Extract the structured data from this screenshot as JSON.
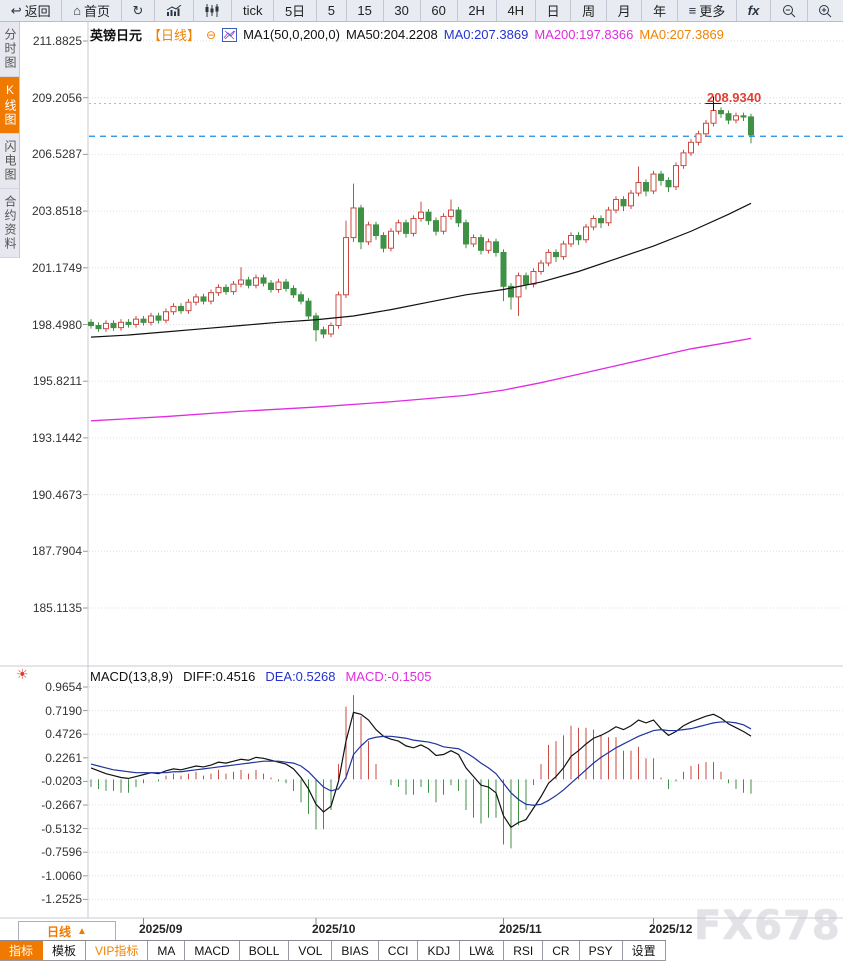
{
  "toolbar": {
    "back": "返回",
    "home": "首页",
    "tick": "tick",
    "d5": "5日",
    "m5": "5",
    "m15": "15",
    "m30": "30",
    "m60": "60",
    "h2": "2H",
    "h4": "4H",
    "day": "日",
    "week": "周",
    "month": "月",
    "year": "年",
    "more": "更多",
    "fx": "fx"
  },
  "sidebar": {
    "items": [
      {
        "label": "分时图",
        "active": false
      },
      {
        "label": "K线图",
        "active": true
      },
      {
        "label": "闪电图",
        "active": false
      },
      {
        "label": "合约资料",
        "active": false
      }
    ]
  },
  "chart_header": {
    "symbol": "英镑日元",
    "period": "【日线】",
    "ma_group": "MA1(50,0,200,0)",
    "ma50": "MA50:204.2208",
    "ma0_blue": "MA0:207.3869",
    "ma200": "MA200:197.8366",
    "ma0_orange": "MA0:207.3869"
  },
  "macd_header": {
    "title": "MACD(13,8,9)",
    "diff": "DIFF:0.4516",
    "dea": "DEA:0.5268",
    "macd": "MACD:-0.1505"
  },
  "price_marker": "208.9340",
  "period_selector": {
    "label": "日线",
    "arrow": "▲"
  },
  "bottom_tabs": {
    "items": [
      {
        "label": "指标"
      },
      {
        "label": "模板"
      },
      {
        "label": "VIP指标"
      },
      {
        "label": "MA"
      },
      {
        "label": "MACD"
      },
      {
        "label": "BOLL"
      },
      {
        "label": "VOL"
      },
      {
        "label": "BIAS"
      },
      {
        "label": "CCI"
      },
      {
        "label": "KDJ"
      },
      {
        "label": "LW&"
      },
      {
        "label": "RSI"
      },
      {
        "label": "CR"
      },
      {
        "label": "PSY"
      },
      {
        "label": "设置"
      }
    ]
  },
  "watermark": "FX678",
  "chart_data": {
    "type": "candlestick_with_macd",
    "symbol": "英镑日元",
    "period": "日线",
    "y_labels": [
      "211.8825",
      "209.2056",
      "206.5287",
      "203.8518",
      "201.1749",
      "198.4980",
      "195.8211",
      "193.1442",
      "190.4673",
      "187.7904",
      "185.1135"
    ],
    "macd_y_labels": [
      "0.9654",
      "0.7190",
      "0.4726",
      "0.2261",
      "-0.0203",
      "-0.2667",
      "-0.5132",
      "-0.7596",
      "-1.0060",
      "-1.2525"
    ],
    "months": [
      {
        "label": "2025/09",
        "index": 7
      },
      {
        "label": "2025/10",
        "index": 30
      },
      {
        "label": "2025/11",
        "index": 55
      },
      {
        "label": "2025/12",
        "index": 75
      }
    ],
    "high_marker": 208.934,
    "last_price": 207.3869,
    "cross_index": 83,
    "ma_values": {
      "ma50": 204.2208,
      "ma200": 197.8366,
      "ma0": 207.3869
    },
    "colors": {
      "up": "#cc4a41",
      "down": "#3f9146",
      "ma50": "#111111",
      "ma200": "#e02ce0",
      "dea": "#20339e",
      "last_line": "#1f8be4",
      "high_line": "#f0a19c"
    },
    "ohlc": [
      [
        198.6,
        198.75,
        198.3,
        198.45
      ],
      [
        198.45,
        198.6,
        198.15,
        198.3
      ],
      [
        198.3,
        198.7,
        198.15,
        198.55
      ],
      [
        198.55,
        198.7,
        198.2,
        198.35
      ],
      [
        198.35,
        198.75,
        198.2,
        198.6
      ],
      [
        198.6,
        198.75,
        198.35,
        198.5
      ],
      [
        198.5,
        198.9,
        198.35,
        198.75
      ],
      [
        198.75,
        198.9,
        198.45,
        198.6
      ],
      [
        198.6,
        199.05,
        198.45,
        198.9
      ],
      [
        198.9,
        199.05,
        198.55,
        198.7
      ],
      [
        198.7,
        199.25,
        198.55,
        199.1
      ],
      [
        199.1,
        199.5,
        198.95,
        199.35
      ],
      [
        199.35,
        199.5,
        199.0,
        199.15
      ],
      [
        199.15,
        199.7,
        199.0,
        199.55
      ],
      [
        199.55,
        199.95,
        199.4,
        199.8
      ],
      [
        199.8,
        199.95,
        199.45,
        199.6
      ],
      [
        199.6,
        200.15,
        199.45,
        200.0
      ],
      [
        200.0,
        200.4,
        199.85,
        200.25
      ],
      [
        200.25,
        200.4,
        199.9,
        200.05
      ],
      [
        200.05,
        200.55,
        199.9,
        200.4
      ],
      [
        200.4,
        201.2,
        200.25,
        200.6
      ],
      [
        200.6,
        200.75,
        200.2,
        200.35
      ],
      [
        200.35,
        200.85,
        200.2,
        200.7
      ],
      [
        200.7,
        200.85,
        200.3,
        200.45
      ],
      [
        200.45,
        200.6,
        200.0,
        200.15
      ],
      [
        200.15,
        200.65,
        200.0,
        200.5
      ],
      [
        200.5,
        200.65,
        200.05,
        200.2
      ],
      [
        200.2,
        200.35,
        199.75,
        199.9
      ],
      [
        199.9,
        200.05,
        199.45,
        199.6
      ],
      [
        199.6,
        199.75,
        198.75,
        198.9
      ],
      [
        198.9,
        199.05,
        197.7,
        198.25
      ],
      [
        198.25,
        198.4,
        197.85,
        198.05
      ],
      [
        198.05,
        198.6,
        197.9,
        198.45
      ],
      [
        198.45,
        200.05,
        198.3,
        199.9
      ],
      [
        199.9,
        203.4,
        199.75,
        202.6
      ],
      [
        202.6,
        205.15,
        202.4,
        204.0
      ],
      [
        204.0,
        204.15,
        202.05,
        202.4
      ],
      [
        202.4,
        203.35,
        202.25,
        203.2
      ],
      [
        203.2,
        203.35,
        202.5,
        202.7
      ],
      [
        202.7,
        202.85,
        201.9,
        202.1
      ],
      [
        202.1,
        203.05,
        201.95,
        202.9
      ],
      [
        202.9,
        203.45,
        202.75,
        203.3
      ],
      [
        203.3,
        203.45,
        202.6,
        202.8
      ],
      [
        202.8,
        203.65,
        202.65,
        203.5
      ],
      [
        203.5,
        204.3,
        203.35,
        203.8
      ],
      [
        203.8,
        203.95,
        203.2,
        203.4
      ],
      [
        203.4,
        203.55,
        202.7,
        202.9
      ],
      [
        202.9,
        203.75,
        202.75,
        203.6
      ],
      [
        203.6,
        204.4,
        203.45,
        203.9
      ],
      [
        203.9,
        204.05,
        203.1,
        203.3
      ],
      [
        203.3,
        203.45,
        202.1,
        202.3
      ],
      [
        202.3,
        202.75,
        202.15,
        202.6
      ],
      [
        202.6,
        202.75,
        201.8,
        202.0
      ],
      [
        202.0,
        202.55,
        201.85,
        202.4
      ],
      [
        202.4,
        202.55,
        201.7,
        201.9
      ],
      [
        201.9,
        202.05,
        199.6,
        200.3
      ],
      [
        200.3,
        200.45,
        199.2,
        199.8
      ],
      [
        199.8,
        200.95,
        198.9,
        200.8
      ],
      [
        200.8,
        200.95,
        200.15,
        200.4
      ],
      [
        200.4,
        201.15,
        200.25,
        201.0
      ],
      [
        201.0,
        201.55,
        200.85,
        201.4
      ],
      [
        201.4,
        202.05,
        201.25,
        201.9
      ],
      [
        201.9,
        202.05,
        201.45,
        201.7
      ],
      [
        201.7,
        202.45,
        201.55,
        202.3
      ],
      [
        202.3,
        202.85,
        202.15,
        202.7
      ],
      [
        202.7,
        202.85,
        202.25,
        202.5
      ],
      [
        202.5,
        203.25,
        202.35,
        203.1
      ],
      [
        203.1,
        203.65,
        202.95,
        203.5
      ],
      [
        203.5,
        203.65,
        203.05,
        203.3
      ],
      [
        203.3,
        204.05,
        203.15,
        203.9
      ],
      [
        203.9,
        204.55,
        203.75,
        204.4
      ],
      [
        204.4,
        204.55,
        203.85,
        204.1
      ],
      [
        204.1,
        204.85,
        203.95,
        204.7
      ],
      [
        204.7,
        205.95,
        204.55,
        205.2
      ],
      [
        205.2,
        205.35,
        204.55,
        204.8
      ],
      [
        204.8,
        205.75,
        204.65,
        205.6
      ],
      [
        205.6,
        205.75,
        205.05,
        205.3
      ],
      [
        205.3,
        205.45,
        204.75,
        205.0
      ],
      [
        205.0,
        206.15,
        204.85,
        206.0
      ],
      [
        206.0,
        206.75,
        205.85,
        206.6
      ],
      [
        206.6,
        207.25,
        206.45,
        207.1
      ],
      [
        207.1,
        207.65,
        206.95,
        207.5
      ],
      [
        207.5,
        208.15,
        207.35,
        208.0
      ],
      [
        208.0,
        208.93,
        207.85,
        208.6
      ],
      [
        208.6,
        208.75,
        208.25,
        208.45
      ],
      [
        208.45,
        208.6,
        207.95,
        208.15
      ],
      [
        208.15,
        208.5,
        208.0,
        208.35
      ],
      [
        208.35,
        208.5,
        208.1,
        208.3
      ],
      [
        208.3,
        208.45,
        207.05,
        207.45
      ]
    ],
    "ma50_points": [
      [
        0,
        197.9
      ],
      [
        5,
        198.0
      ],
      [
        10,
        198.15
      ],
      [
        15,
        198.3
      ],
      [
        20,
        198.45
      ],
      [
        25,
        198.6
      ],
      [
        30,
        198.72
      ],
      [
        35,
        198.9
      ],
      [
        40,
        199.2
      ],
      [
        45,
        199.55
      ],
      [
        50,
        199.9
      ],
      [
        55,
        200.15
      ],
      [
        60,
        200.5
      ],
      [
        65,
        201.0
      ],
      [
        70,
        201.6
      ],
      [
        75,
        202.2
      ],
      [
        80,
        202.9
      ],
      [
        85,
        203.7
      ],
      [
        88,
        204.22
      ]
    ],
    "ma200_points": [
      [
        0,
        193.95
      ],
      [
        10,
        194.15
      ],
      [
        20,
        194.4
      ],
      [
        30,
        194.6
      ],
      [
        40,
        194.85
      ],
      [
        50,
        195.15
      ],
      [
        55,
        195.4
      ],
      [
        60,
        195.75
      ],
      [
        65,
        196.15
      ],
      [
        70,
        196.55
      ],
      [
        75,
        196.95
      ],
      [
        80,
        197.35
      ],
      [
        85,
        197.65
      ],
      [
        88,
        197.84
      ]
    ],
    "macd": {
      "params": "(13,8,9)",
      "last": {
        "diff": 0.4516,
        "dea": 0.5268,
        "macd": -0.1505
      },
      "hist_formula": "2*(diff-dea)",
      "diff": [
        0.12,
        0.09,
        0.06,
        0.04,
        0.02,
        0.01,
        0.03,
        0.05,
        0.07,
        0.06,
        0.09,
        0.11,
        0.1,
        0.12,
        0.14,
        0.13,
        0.15,
        0.18,
        0.17,
        0.19,
        0.21,
        0.2,
        0.23,
        0.22,
        0.2,
        0.18,
        0.16,
        0.11,
        0.02,
        -0.1,
        -0.26,
        -0.34,
        -0.28,
        -0.02,
        0.4,
        0.7,
        0.68,
        0.62,
        0.52,
        0.45,
        0.42,
        0.4,
        0.35,
        0.33,
        0.36,
        0.32,
        0.25,
        0.26,
        0.3,
        0.26,
        0.12,
        0.03,
        -0.06,
        -0.08,
        -0.14,
        -0.38,
        -0.5,
        -0.45,
        -0.42,
        -0.3,
        -0.18,
        -0.04,
        0.03,
        0.12,
        0.24,
        0.3,
        0.37,
        0.43,
        0.46,
        0.5,
        0.55,
        0.52,
        0.56,
        0.62,
        0.59,
        0.62,
        0.53,
        0.46,
        0.5,
        0.56,
        0.6,
        0.63,
        0.66,
        0.68,
        0.64,
        0.58,
        0.54,
        0.5,
        0.4516
      ],
      "dea": [
        0.16,
        0.14,
        0.12,
        0.1,
        0.09,
        0.08,
        0.07,
        0.07,
        0.07,
        0.07,
        0.07,
        0.08,
        0.08,
        0.09,
        0.1,
        0.11,
        0.12,
        0.13,
        0.14,
        0.15,
        0.16,
        0.17,
        0.18,
        0.19,
        0.19,
        0.19,
        0.18,
        0.17,
        0.14,
        0.08,
        0.0,
        -0.08,
        -0.12,
        -0.1,
        0.02,
        0.26,
        0.35,
        0.42,
        0.44,
        0.45,
        0.45,
        0.44,
        0.43,
        0.41,
        0.4,
        0.39,
        0.37,
        0.34,
        0.33,
        0.32,
        0.28,
        0.23,
        0.17,
        0.12,
        0.06,
        -0.04,
        -0.14,
        -0.21,
        -0.26,
        -0.27,
        -0.26,
        -0.22,
        -0.17,
        -0.11,
        -0.04,
        0.03,
        0.1,
        0.17,
        0.23,
        0.28,
        0.33,
        0.37,
        0.41,
        0.45,
        0.48,
        0.51,
        0.52,
        0.51,
        0.51,
        0.52,
        0.53,
        0.55,
        0.57,
        0.59,
        0.6,
        0.6,
        0.59,
        0.57,
        0.5268
      ]
    }
  }
}
